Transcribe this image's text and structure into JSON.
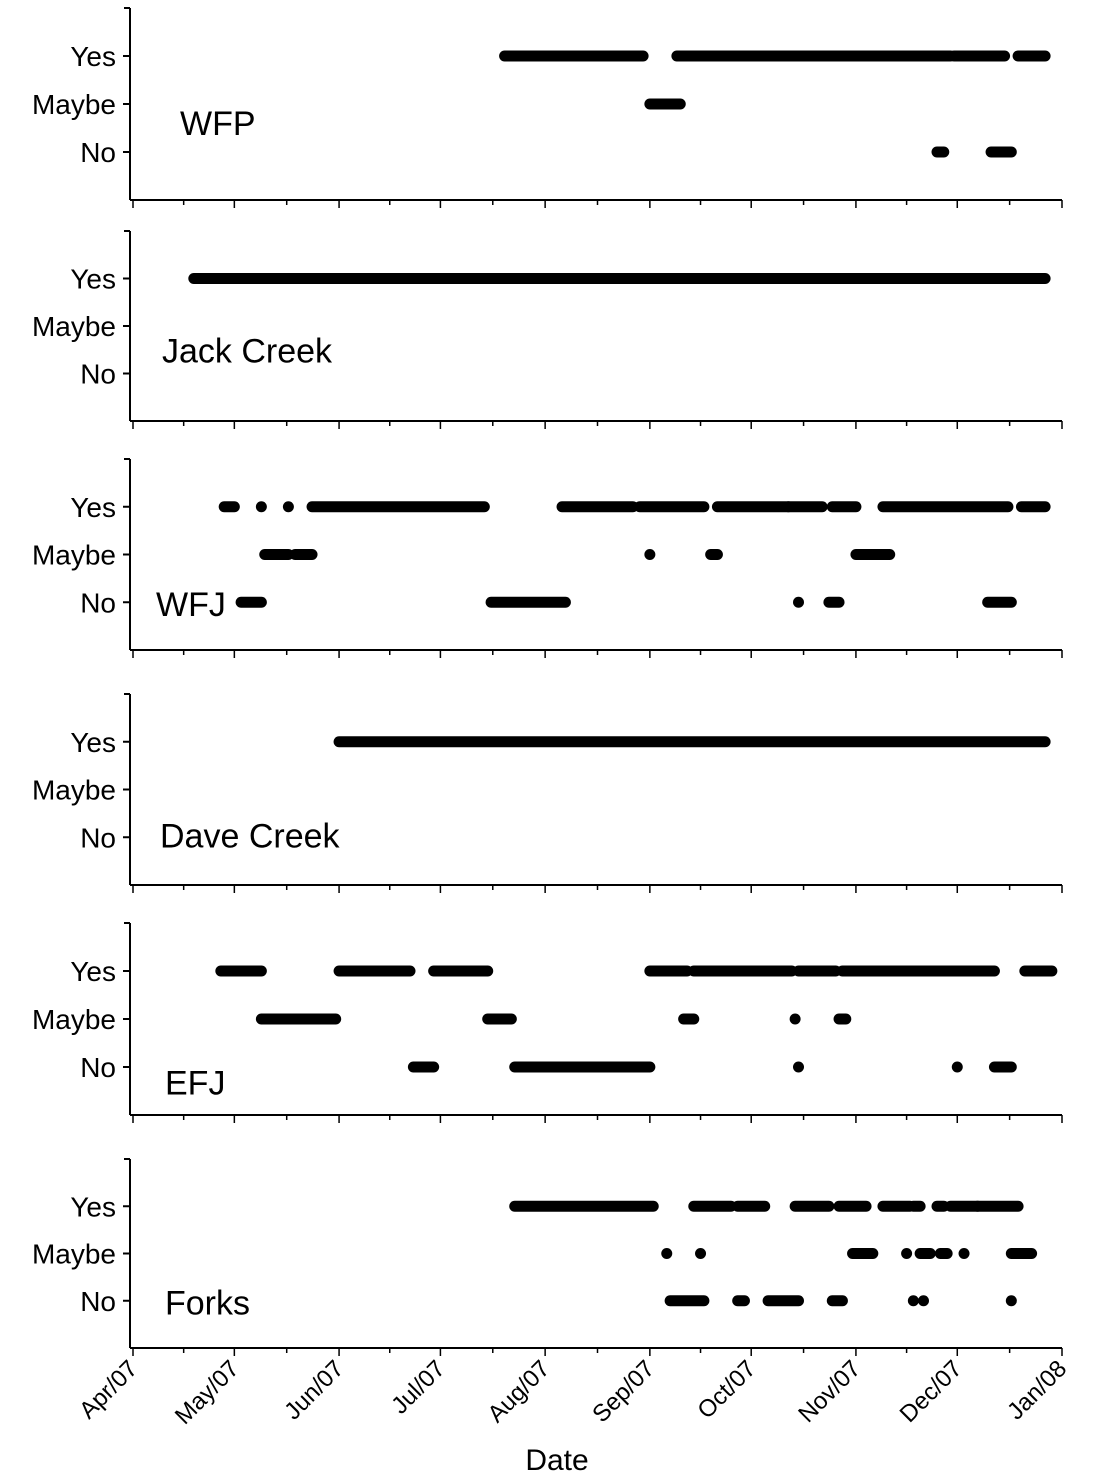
{
  "chart_data": {
    "type": "scatter",
    "xlabel": "Date",
    "x_ticks": [
      "Apr/07",
      "May/07",
      "Jun/07",
      "Jul/07",
      "Aug/07",
      "Sep/07",
      "Oct/07",
      "Nov/07",
      "Dec/07",
      "Jan/08"
    ],
    "y_categories": [
      "Yes",
      "Maybe",
      "No"
    ],
    "panels": [
      {
        "name": "WFP",
        "y_labels": [
          "Yes",
          "Maybe",
          "No"
        ],
        "segments": [
          {
            "level": "Yes",
            "start": "2007-07-20",
            "end": "2007-08-30"
          },
          {
            "level": "Yes",
            "start": "2007-09-09",
            "end": "2007-11-29"
          },
          {
            "level": "Yes",
            "start": "2007-11-30",
            "end": "2007-12-15"
          },
          {
            "level": "Yes",
            "start": "2007-12-19",
            "end": "2007-12-27"
          },
          {
            "level": "Maybe",
            "start": "2007-09-01",
            "end": "2007-09-10"
          },
          {
            "level": "No",
            "start": "2007-11-25",
            "end": "2007-11-27"
          },
          {
            "level": "No",
            "start": "2007-12-11",
            "end": "2007-12-17"
          }
        ]
      },
      {
        "name": "Jack Creek",
        "y_labels": [
          "Yes",
          "Maybe",
          "No"
        ],
        "segments": [
          {
            "level": "Yes",
            "start": "2007-04-19",
            "end": "2007-12-27"
          }
        ]
      },
      {
        "name": "WFJ",
        "y_labels": [
          "Yes",
          "Maybe",
          "No"
        ],
        "segments": [
          {
            "level": "Yes",
            "start": "2007-04-28",
            "end": "2007-05-01"
          },
          {
            "level": "Yes",
            "start": "2007-05-09",
            "end": "2007-05-09"
          },
          {
            "level": "Yes",
            "start": "2007-05-17",
            "end": "2007-05-17"
          },
          {
            "level": "Yes",
            "start": "2007-05-24",
            "end": "2007-07-14"
          },
          {
            "level": "Yes",
            "start": "2007-08-06",
            "end": "2007-08-27"
          },
          {
            "level": "Yes",
            "start": "2007-08-29",
            "end": "2007-09-17"
          },
          {
            "level": "Yes",
            "start": "2007-09-21",
            "end": "2007-10-12"
          },
          {
            "level": "Yes",
            "start": "2007-10-12",
            "end": "2007-10-22"
          },
          {
            "level": "Yes",
            "start": "2007-10-25",
            "end": "2007-11-01"
          },
          {
            "level": "Yes",
            "start": "2007-11-09",
            "end": "2007-12-16"
          },
          {
            "level": "Yes",
            "start": "2007-12-20",
            "end": "2007-12-27"
          },
          {
            "level": "Maybe",
            "start": "2007-05-10",
            "end": "2007-05-17"
          },
          {
            "level": "Maybe",
            "start": "2007-05-19",
            "end": "2007-05-24"
          },
          {
            "level": "Maybe",
            "start": "2007-09-01",
            "end": "2007-09-01"
          },
          {
            "level": "Maybe",
            "start": "2007-09-19",
            "end": "2007-09-21"
          },
          {
            "level": "Maybe",
            "start": "2007-11-01",
            "end": "2007-11-11"
          },
          {
            "level": "No",
            "start": "2007-05-03",
            "end": "2007-05-09"
          },
          {
            "level": "No",
            "start": "2007-07-16",
            "end": "2007-08-07"
          },
          {
            "level": "No",
            "start": "2007-10-15",
            "end": "2007-10-15"
          },
          {
            "level": "No",
            "start": "2007-10-24",
            "end": "2007-10-27"
          },
          {
            "level": "No",
            "start": "2007-12-10",
            "end": "2007-12-17"
          }
        ]
      },
      {
        "name": "Dave Creek",
        "y_labels": [
          "Yes",
          "Maybe",
          "No"
        ],
        "segments": [
          {
            "level": "Yes",
            "start": "2007-06-01",
            "end": "2007-12-27"
          }
        ]
      },
      {
        "name": "EFJ",
        "y_labels": [
          "Yes",
          "Maybe",
          "No"
        ],
        "segments": [
          {
            "level": "Yes",
            "start": "2007-04-27",
            "end": "2007-05-09"
          },
          {
            "level": "Yes",
            "start": "2007-06-01",
            "end": "2007-06-22"
          },
          {
            "level": "Yes",
            "start": "2007-06-29",
            "end": "2007-07-15"
          },
          {
            "level": "Yes",
            "start": "2007-09-01",
            "end": "2007-09-12"
          },
          {
            "level": "Yes",
            "start": "2007-09-14",
            "end": "2007-10-13"
          },
          {
            "level": "Yes",
            "start": "2007-10-15",
            "end": "2007-10-26"
          },
          {
            "level": "Yes",
            "start": "2007-10-28",
            "end": "2007-12-01"
          },
          {
            "level": "Yes",
            "start": "2007-12-01",
            "end": "2007-12-12"
          },
          {
            "level": "Yes",
            "start": "2007-12-21",
            "end": "2007-12-29"
          },
          {
            "level": "Maybe",
            "start": "2007-05-09",
            "end": "2007-05-31"
          },
          {
            "level": "Maybe",
            "start": "2007-07-15",
            "end": "2007-07-22"
          },
          {
            "level": "Maybe",
            "start": "2007-09-11",
            "end": "2007-09-14"
          },
          {
            "level": "Maybe",
            "start": "2007-10-14",
            "end": "2007-10-14"
          },
          {
            "level": "Maybe",
            "start": "2007-10-27",
            "end": "2007-10-29"
          },
          {
            "level": "No",
            "start": "2007-06-23",
            "end": "2007-06-29"
          },
          {
            "level": "No",
            "start": "2007-07-23",
            "end": "2007-09-01"
          },
          {
            "level": "No",
            "start": "2007-10-15",
            "end": "2007-10-15"
          },
          {
            "level": "No",
            "start": "2007-12-01",
            "end": "2007-12-01"
          },
          {
            "level": "No",
            "start": "2007-12-12",
            "end": "2007-12-17"
          }
        ]
      },
      {
        "name": "Forks",
        "y_labels": [
          "Yes",
          "Maybe",
          "No"
        ],
        "segments": [
          {
            "level": "Yes",
            "start": "2007-07-23",
            "end": "2007-09-02"
          },
          {
            "level": "Yes",
            "start": "2007-09-14",
            "end": "2007-09-25"
          },
          {
            "level": "Yes",
            "start": "2007-09-27",
            "end": "2007-10-05"
          },
          {
            "level": "Yes",
            "start": "2007-10-14",
            "end": "2007-10-24"
          },
          {
            "level": "Yes",
            "start": "2007-10-27",
            "end": "2007-11-04"
          },
          {
            "level": "Yes",
            "start": "2007-11-09",
            "end": "2007-11-17"
          },
          {
            "level": "Yes",
            "start": "2007-11-18",
            "end": "2007-11-20"
          },
          {
            "level": "Yes",
            "start": "2007-11-25",
            "end": "2007-11-27"
          },
          {
            "level": "Yes",
            "start": "2007-11-29",
            "end": "2007-12-07"
          },
          {
            "level": "Yes",
            "start": "2007-12-07",
            "end": "2007-12-19"
          },
          {
            "level": "Maybe",
            "start": "2007-09-06",
            "end": "2007-09-06"
          },
          {
            "level": "Maybe",
            "start": "2007-09-16",
            "end": "2007-09-16"
          },
          {
            "level": "Maybe",
            "start": "2007-10-31",
            "end": "2007-11-06"
          },
          {
            "level": "Maybe",
            "start": "2007-11-16",
            "end": "2007-11-16"
          },
          {
            "level": "Maybe",
            "start": "2007-11-20",
            "end": "2007-11-23"
          },
          {
            "level": "Maybe",
            "start": "2007-11-26",
            "end": "2007-11-28"
          },
          {
            "level": "Maybe",
            "start": "2007-12-03",
            "end": "2007-12-03"
          },
          {
            "level": "Maybe",
            "start": "2007-12-17",
            "end": "2007-12-23"
          },
          {
            "level": "No",
            "start": "2007-09-07",
            "end": "2007-09-17"
          },
          {
            "level": "No",
            "start": "2007-09-27",
            "end": "2007-09-29"
          },
          {
            "level": "No",
            "start": "2007-10-06",
            "end": "2007-10-15"
          },
          {
            "level": "No",
            "start": "2007-10-25",
            "end": "2007-10-28"
          },
          {
            "level": "No",
            "start": "2007-11-18",
            "end": "2007-11-18"
          },
          {
            "level": "No",
            "start": "2007-11-21",
            "end": "2007-11-21"
          },
          {
            "level": "No",
            "start": "2007-12-17",
            "end": "2007-12-17"
          }
        ]
      }
    ]
  }
}
